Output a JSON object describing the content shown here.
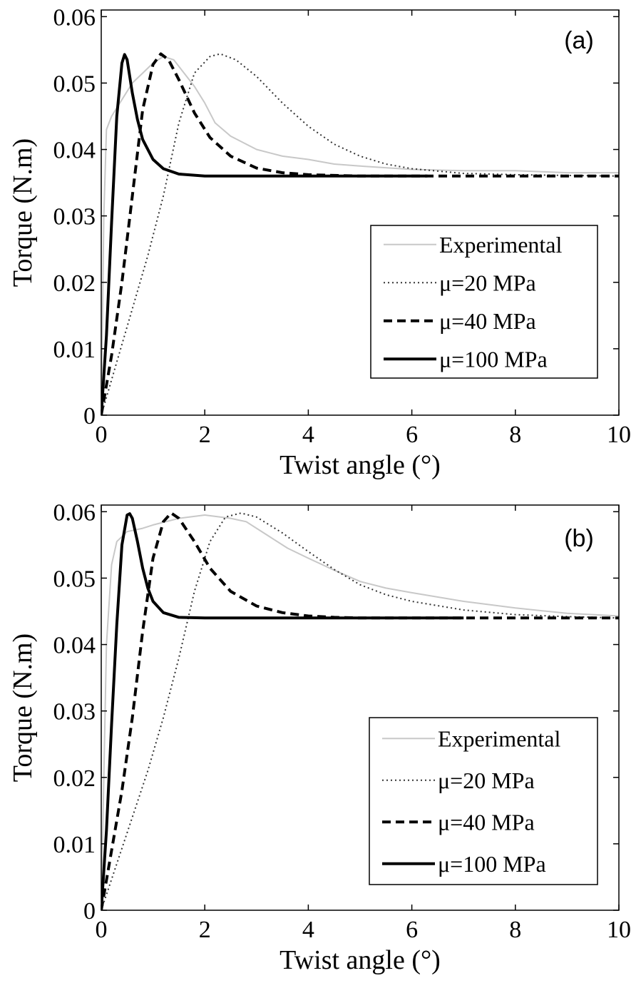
{
  "chart_data": [
    {
      "type": "line",
      "panel_label": "(a)",
      "xlabel": "Twist angle (°)",
      "ylabel": "Torque (N.m)",
      "xlim": [
        0,
        10
      ],
      "ylim": [
        0,
        0.061
      ],
      "xticks": [
        0,
        2,
        4,
        6,
        8,
        10
      ],
      "xtick_labels": [
        "0",
        "2",
        "4",
        "6",
        "8",
        "10"
      ],
      "yticks": [
        0,
        0.01,
        0.02,
        0.03,
        0.04,
        0.05,
        0.06
      ],
      "ytick_labels": [
        "0",
        "0.01",
        "0.02",
        "0.03",
        "0.04",
        "0.05",
        "0.06"
      ],
      "grid": false,
      "legend_position": "right",
      "series": [
        {
          "name": "Experimental",
          "style": "solid-gray",
          "x": [
            0,
            0.05,
            0.1,
            0.2,
            0.4,
            0.6,
            0.8,
            1.0,
            1.2,
            1.4,
            1.6,
            1.8,
            2.0,
            2.2,
            2.5,
            3.0,
            3.5,
            4.0,
            4.5,
            5.0,
            6.0,
            7.0,
            8.0,
            9.0,
            10.0
          ],
          "y": [
            0,
            0.03,
            0.043,
            0.045,
            0.0475,
            0.05,
            0.0515,
            0.053,
            0.054,
            0.0535,
            0.0515,
            0.0495,
            0.047,
            0.044,
            0.042,
            0.04,
            0.039,
            0.0385,
            0.0378,
            0.0375,
            0.037,
            0.0368,
            0.0368,
            0.0365,
            0.0365
          ]
        },
        {
          "name": "μ=20 MPa",
          "style": "dotted",
          "x": [
            0,
            0.3,
            0.6,
            0.9,
            1.2,
            1.5,
            1.8,
            2.1,
            2.3,
            2.6,
            3.0,
            3.5,
            4.0,
            4.5,
            5.0,
            5.5,
            6.0,
            7.0,
            8.0,
            9.0,
            10.0
          ],
          "y": [
            0,
            0.008,
            0.016,
            0.024,
            0.033,
            0.044,
            0.0515,
            0.054,
            0.0544,
            0.0535,
            0.051,
            0.047,
            0.0435,
            0.0408,
            0.039,
            0.0378,
            0.0371,
            0.0364,
            0.0362,
            0.0361,
            0.036
          ]
        },
        {
          "name": "μ=40 MPa",
          "style": "dashed",
          "x": [
            0,
            0.2,
            0.4,
            0.6,
            0.8,
            1.0,
            1.15,
            1.3,
            1.5,
            1.8,
            2.1,
            2.5,
            3.0,
            3.5,
            4.0,
            5.0,
            6.0,
            7.0,
            8.0,
            10.0
          ],
          "y": [
            0,
            0.009,
            0.02,
            0.033,
            0.046,
            0.0528,
            0.0544,
            0.0535,
            0.0505,
            0.0455,
            0.0418,
            0.039,
            0.0372,
            0.0365,
            0.0362,
            0.036,
            0.036,
            0.036,
            0.036,
            0.036
          ]
        },
        {
          "name": "μ=100 MPa",
          "style": "solid-black",
          "x": [
            0,
            0.1,
            0.2,
            0.3,
            0.4,
            0.45,
            0.5,
            0.6,
            0.7,
            0.8,
            1.0,
            1.2,
            1.5,
            2.0,
            3.0,
            4.0,
            5.0,
            6.3
          ],
          "y": [
            0,
            0.012,
            0.029,
            0.045,
            0.053,
            0.0543,
            0.0535,
            0.0485,
            0.0445,
            0.0415,
            0.0385,
            0.0371,
            0.0363,
            0.036,
            0.036,
            0.036,
            0.036,
            0.036
          ]
        }
      ]
    },
    {
      "type": "line",
      "panel_label": "(b)",
      "xlabel": "Twist angle (°)",
      "ylabel": "Torque (N.m)",
      "xlim": [
        0,
        10
      ],
      "ylim": [
        0,
        0.061
      ],
      "xticks": [
        0,
        2,
        4,
        6,
        8,
        10
      ],
      "xtick_labels": [
        "0",
        "2",
        "4",
        "6",
        "8",
        "10"
      ],
      "yticks": [
        0,
        0.01,
        0.02,
        0.03,
        0.04,
        0.05,
        0.06
      ],
      "ytick_labels": [
        "0",
        "0.01",
        "0.02",
        "0.03",
        "0.04",
        "0.05",
        "0.06"
      ],
      "grid": false,
      "legend_position": "right",
      "series": [
        {
          "name": "Experimental",
          "style": "solid-gray",
          "x": [
            0,
            0.05,
            0.1,
            0.2,
            0.3,
            0.5,
            0.8,
            1.0,
            1.5,
            2.0,
            2.5,
            2.8,
            3.2,
            3.6,
            4.0,
            4.5,
            5.0,
            5.5,
            6.0,
            7.0,
            8.0,
            9.0,
            10.0
          ],
          "y": [
            0,
            0.02,
            0.04,
            0.052,
            0.0555,
            0.057,
            0.0575,
            0.058,
            0.059,
            0.0595,
            0.059,
            0.0585,
            0.0565,
            0.0545,
            0.053,
            0.0512,
            0.0495,
            0.0485,
            0.0478,
            0.0465,
            0.0455,
            0.0447,
            0.0443
          ]
        },
        {
          "name": "μ=20 MPa",
          "style": "dotted",
          "x": [
            0,
            0.3,
            0.6,
            0.9,
            1.2,
            1.5,
            1.8,
            2.1,
            2.4,
            2.7,
            3.0,
            3.5,
            4.0,
            4.5,
            5.0,
            5.5,
            6.0,
            7.0,
            8.0,
            9.0,
            10.0
          ],
          "y": [
            0,
            0.007,
            0.014,
            0.021,
            0.029,
            0.038,
            0.048,
            0.0555,
            0.0592,
            0.0598,
            0.0592,
            0.0568,
            0.054,
            0.0513,
            0.049,
            0.0475,
            0.0465,
            0.0452,
            0.0445,
            0.0442,
            0.044
          ]
        },
        {
          "name": "μ=40 MPa",
          "style": "dashed",
          "x": [
            0,
            0.2,
            0.4,
            0.6,
            0.8,
            1.0,
            1.2,
            1.35,
            1.5,
            1.8,
            2.1,
            2.5,
            3.0,
            3.5,
            4.0,
            4.5,
            5.0,
            6.0,
            7.0,
            8.0,
            10.0
          ],
          "y": [
            0,
            0.009,
            0.018,
            0.029,
            0.042,
            0.053,
            0.0585,
            0.0598,
            0.059,
            0.0555,
            0.0515,
            0.048,
            0.0458,
            0.0448,
            0.0443,
            0.0441,
            0.044,
            0.044,
            0.044,
            0.044,
            0.044
          ]
        },
        {
          "name": "μ=100 MPa",
          "style": "solid-black",
          "x": [
            0,
            0.1,
            0.2,
            0.3,
            0.4,
            0.5,
            0.55,
            0.6,
            0.7,
            0.8,
            0.9,
            1.0,
            1.2,
            1.5,
            2.0,
            3.0,
            4.0,
            5.0,
            7.0
          ],
          "y": [
            0,
            0.012,
            0.028,
            0.043,
            0.055,
            0.0595,
            0.0597,
            0.059,
            0.0555,
            0.0515,
            0.0485,
            0.0465,
            0.0448,
            0.0441,
            0.044,
            0.044,
            0.044,
            0.044,
            0.044
          ]
        }
      ]
    }
  ]
}
